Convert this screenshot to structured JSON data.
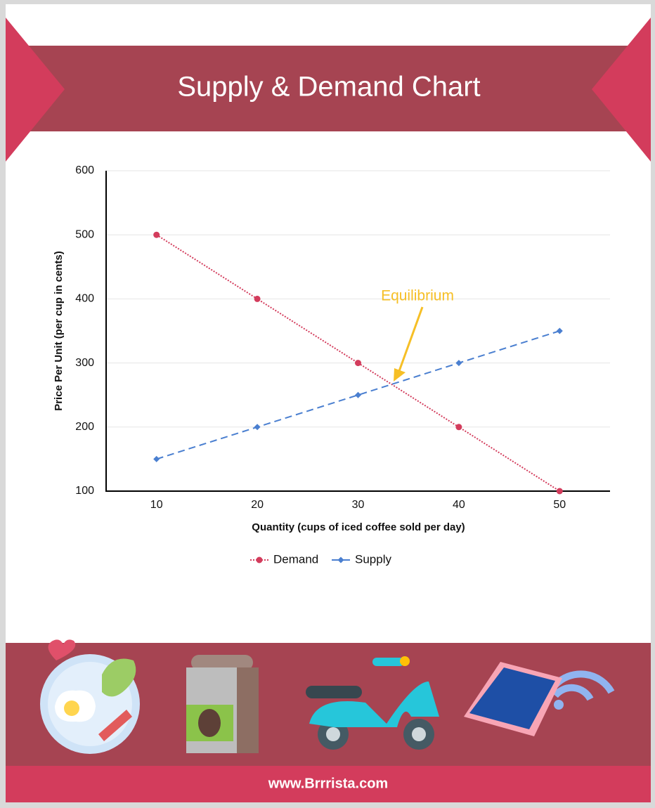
{
  "chart_data": {
    "type": "line",
    "title": "Supply & Demand Chart",
    "x_label": "Quantity (cups of iced coffee sold per day)",
    "y_label": "Price Per Unit (per cup in cents)",
    "annotation": "Equilibrium",
    "x": [
      10,
      20,
      30,
      40,
      50
    ],
    "series": [
      {
        "name": "Demand",
        "color": "#d33c5c",
        "line_style": "dotted",
        "marker": "circle",
        "values": [
          500,
          400,
          300,
          200,
          100
        ]
      },
      {
        "name": "Supply",
        "color": "#4a7fd0",
        "line_style": "dashed",
        "marker": "diamond",
        "values": [
          150,
          200,
          250,
          300,
          350
        ]
      }
    ],
    "xlim": [
      5,
      55
    ],
    "xticks": [
      10,
      20,
      30,
      40,
      50
    ],
    "ylim": [
      100,
      600
    ],
    "yticks": [
      100,
      200,
      300,
      400,
      500,
      600
    ],
    "grid": true,
    "legend": "bottom"
  },
  "footer": "www.Brrrista.com"
}
